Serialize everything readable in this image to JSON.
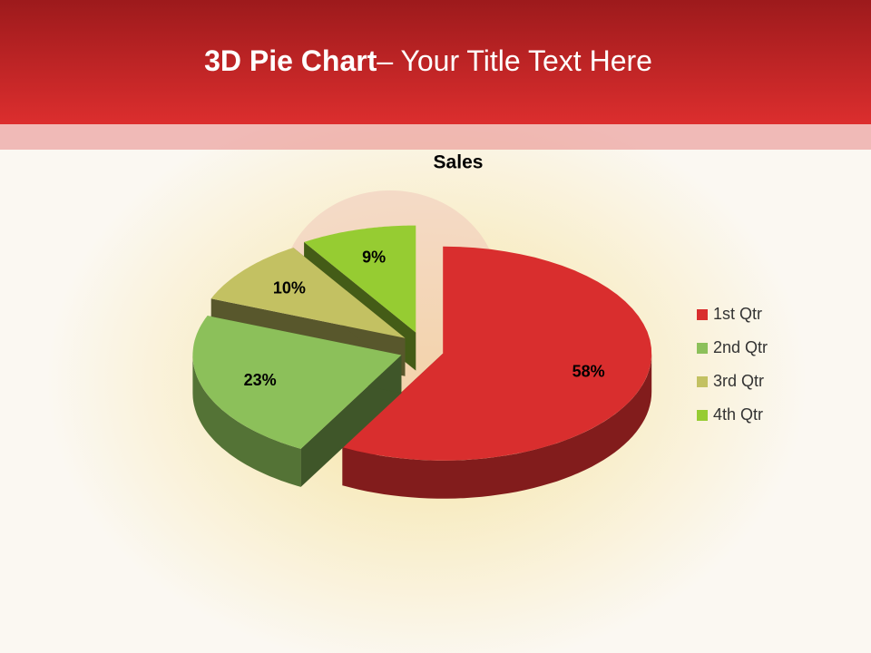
{
  "slide": {
    "title_bold": "3D Pie Chart",
    "title_rest": "– Your Title Text Here"
  },
  "chart_data": {
    "type": "pie3d",
    "title": "Sales",
    "categories": [
      "1st Qtr",
      "2nd Qtr",
      "3rd Qtr",
      "4th Qtr"
    ],
    "values": [
      58,
      23,
      10,
      9
    ],
    "value_labels": [
      "58%",
      "23%",
      "10%",
      "9%"
    ],
    "colors": [
      "#d92e2e",
      "#8cc05a",
      "#c3c162",
      "#96cc32"
    ],
    "legend": "right"
  }
}
